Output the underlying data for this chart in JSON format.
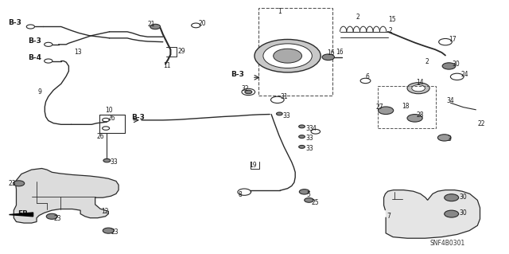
{
  "title": "",
  "background_color": "#ffffff",
  "diagram_code": "SNF4B0301",
  "fig_width": 6.4,
  "fig_height": 3.19,
  "line_color": "#2a2a2a",
  "text_color": "#1a1a1a",
  "dashed_box_color": "#555555"
}
